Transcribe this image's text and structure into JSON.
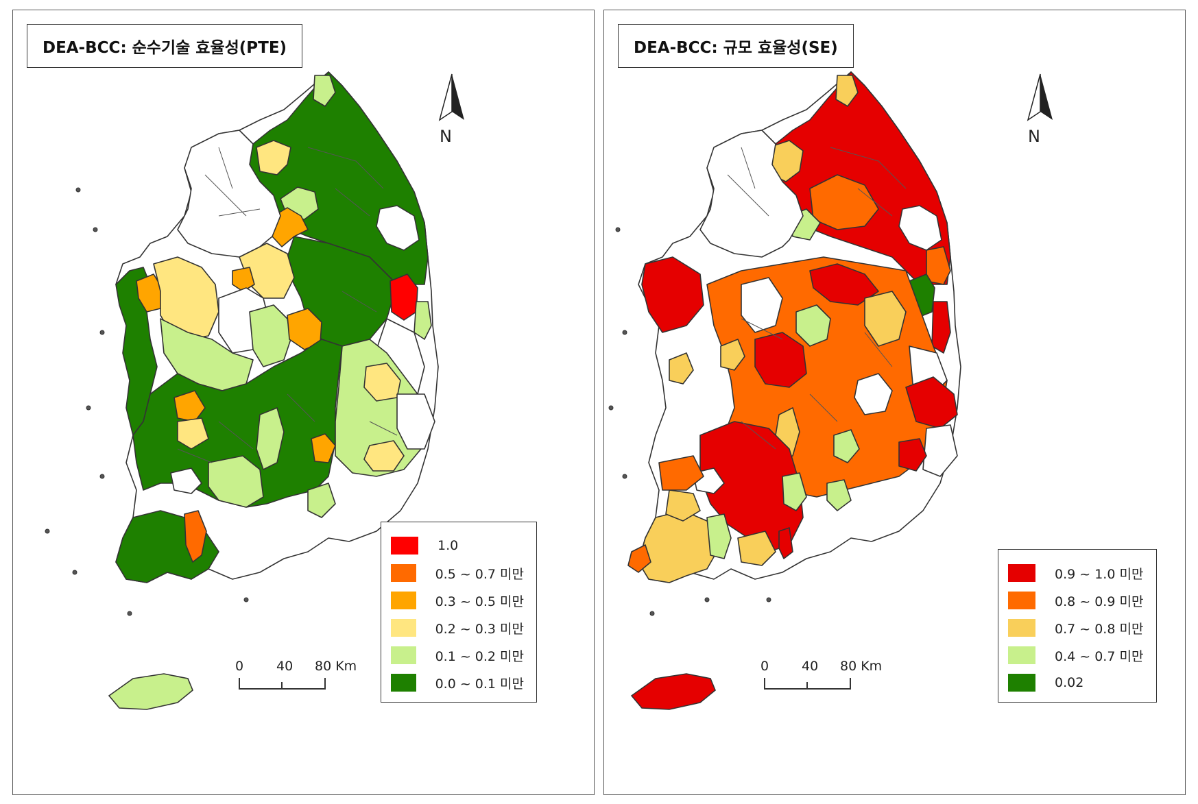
{
  "left": {
    "title": "DEA-BCC: 순수기술 효율성(PTE)",
    "north_label": "N",
    "scale": {
      "labels": [
        "0",
        "40",
        "80 Km"
      ]
    },
    "legend": [
      {
        "label": "1.0",
        "color": "#ff0000"
      },
      {
        "label": "0.5 ~ 0.7 미만",
        "color": "#ff6a00"
      },
      {
        "label": "0.3 ~ 0.5 미만",
        "color": "#ffa500"
      },
      {
        "label": "0.2 ~ 0.3 미만",
        "color": "#ffe680"
      },
      {
        "label": "0.1 ~ 0.2 미만",
        "color": "#c8f08c"
      },
      {
        "label": "0.0 ~ 0.1 미만",
        "color": "#1e8000"
      }
    ]
  },
  "right": {
    "title": "DEA-BCC: 규모 효율성(SE)",
    "north_label": "N",
    "scale": {
      "labels": [
        "0",
        "40",
        "80 Km"
      ]
    },
    "legend": [
      {
        "label": "0.9 ~ 1.0 미만",
        "color": "#e50000"
      },
      {
        "label": "0.8 ~ 0.9 미만",
        "color": "#ff6a00"
      },
      {
        "label": "0.7 ~ 0.8 미만",
        "color": "#f9cf5a"
      },
      {
        "label": "0.4 ~ 0.7 미만",
        "color": "#c8f08c"
      },
      {
        "label": "0.02",
        "color": "#1e8000"
      }
    ]
  }
}
